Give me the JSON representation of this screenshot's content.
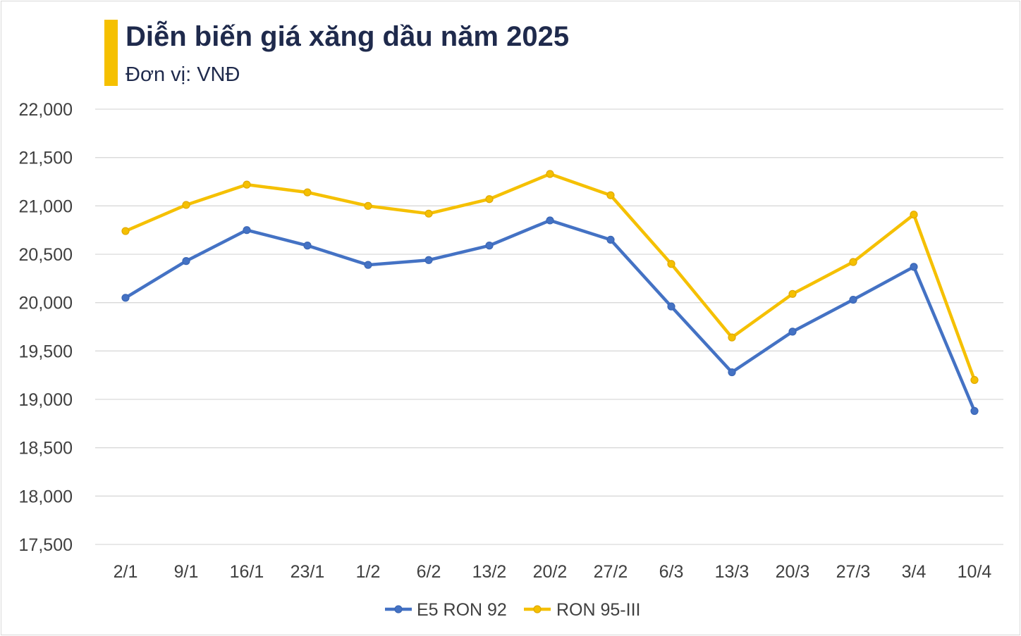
{
  "header": {
    "title": "Diễn biến giá xăng dầu năm 2025",
    "subtitle": "Đơn vị: VNĐ",
    "accent_color": "#F5C000"
  },
  "chart_data": {
    "type": "line",
    "title": "Diễn biến giá xăng dầu năm 2025",
    "subtitle": "Đơn vị: VNĐ",
    "xlabel": "",
    "ylabel": "",
    "categories": [
      "2/1",
      "9/1",
      "16/1",
      "23/1",
      "1/2",
      "6/2",
      "13/2",
      "20/2",
      "27/2",
      "6/3",
      "13/3",
      "20/3",
      "27/3",
      "3/4",
      "10/4"
    ],
    "ylim": [
      17500,
      22000
    ],
    "yticks": [
      17500,
      18000,
      18500,
      19000,
      19500,
      20000,
      20500,
      21000,
      21500,
      22000
    ],
    "ytick_labels": [
      "17,500",
      "18,000",
      "18,500",
      "19,000",
      "19,500",
      "20,000",
      "20,500",
      "21,000",
      "21,500",
      "22,000"
    ],
    "grid": true,
    "legend_position": "bottom",
    "series": [
      {
        "name": "E5 RON 92",
        "color": "#4472C4",
        "values": [
          20050,
          20430,
          20750,
          20590,
          20390,
          20440,
          20590,
          20850,
          20650,
          19960,
          19280,
          19700,
          20030,
          20370,
          18880
        ]
      },
      {
        "name": "RON 95-III",
        "color": "#F5C000",
        "values": [
          20740,
          21010,
          21220,
          21140,
          21000,
          20920,
          21070,
          21330,
          21110,
          20400,
          19640,
          20090,
          20420,
          20910,
          19200
        ]
      }
    ]
  }
}
